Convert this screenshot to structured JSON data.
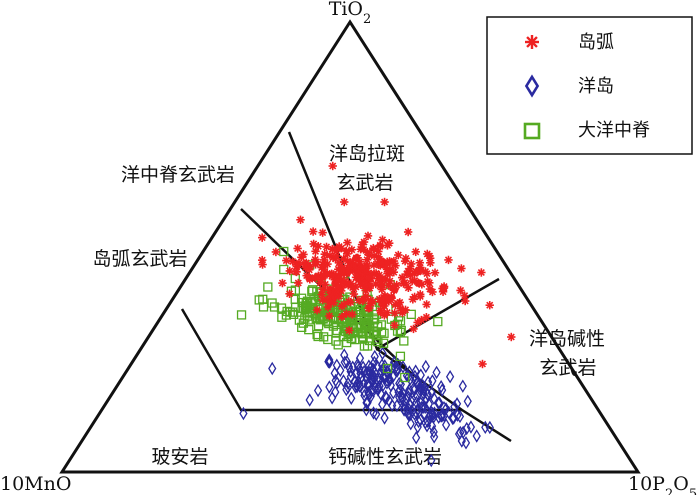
{
  "chart_data": {
    "type": "ternary-scatter",
    "apex_labels": {
      "top": "TiO2",
      "left": "10MnO",
      "right": "10P2O5"
    },
    "field_labels": [
      {
        "id": "oit",
        "lines": [
          "洋岛拉斑",
          "玄武岩"
        ]
      },
      {
        "id": "morb",
        "lines": [
          "洋中脊玄武岩"
        ]
      },
      {
        "id": "iat",
        "lines": [
          "岛弧玄武岩"
        ]
      },
      {
        "id": "oia",
        "lines": [
          "洋岛碱性",
          "玄武岩"
        ]
      },
      {
        "id": "bon",
        "lines": [
          "玻安岩"
        ]
      },
      {
        "id": "cab",
        "lines": [
          "钙碱性玄武岩"
        ]
      }
    ],
    "legend": [
      {
        "key": "island_arc",
        "label": "岛弧"
      },
      {
        "key": "ocean_island",
        "label": "洋岛"
      },
      {
        "key": "morb",
        "label": "大洋中脊"
      }
    ],
    "colors": {
      "island_arc": "#ee2222",
      "ocean_island": "#2a2aa0",
      "morb": "#55aa22"
    },
    "series": [
      {
        "key": "island_arc",
        "marker": "asterisk",
        "clusters": [
          {
            "center": [
              0.45,
              0.25,
              0.3
            ],
            "spread": [
              0.07,
              0.035
            ],
            "count": 260
          },
          {
            "center": [
              0.38,
              0.29,
              0.33
            ],
            "spread": [
              0.05,
              0.025
            ],
            "count": 80
          }
        ],
        "points": [
          [
            0.68,
            0.19,
            0.13
          ],
          [
            0.6,
            0.21,
            0.19
          ],
          [
            0.6,
            0.14,
            0.26
          ],
          [
            0.38,
            0.11,
            0.51
          ],
          [
            0.24,
            0.15,
            0.61
          ],
          [
            0.3,
            0.07,
            0.63
          ]
        ]
      },
      {
        "key": "ocean_island",
        "marker": "diamond",
        "clusters": [
          {
            "center": [
              0.2,
              0.34,
              0.46
            ],
            "spread": [
              0.05,
              0.03
            ],
            "count": 150
          },
          {
            "center": [
              0.13,
              0.3,
              0.57
            ],
            "spread": [
              0.04,
              0.03
            ],
            "count": 70
          }
        ],
        "points": [
          [
            0.13,
            0.62,
            0.25
          ],
          [
            0.23,
            0.52,
            0.25
          ],
          [
            0.16,
            0.49,
            0.35
          ],
          [
            0.1,
            0.24,
            0.66
          ],
          [
            0.08,
            0.24,
            0.68
          ],
          [
            0.12,
            0.26,
            0.62
          ],
          [
            0.22,
            0.36,
            0.42
          ],
          [
            0.12,
            0.38,
            0.5
          ],
          [
            0.26,
            0.38,
            0.36
          ],
          [
            0.17,
            0.39,
            0.44
          ]
        ]
      },
      {
        "key": "morb",
        "marker": "square",
        "clusters": [
          {
            "center": [
              0.36,
              0.35,
              0.29
            ],
            "spread": [
              0.05,
              0.025
            ],
            "count": 150
          },
          {
            "center": [
              0.31,
              0.32,
              0.37
            ],
            "spread": [
              0.04,
              0.02
            ],
            "count": 60
          }
        ],
        "points": [
          [
            0.49,
            0.37,
            0.14
          ],
          [
            0.43,
            0.38,
            0.19
          ],
          [
            0.45,
            0.39,
            0.16
          ],
          [
            0.46,
            0.34,
            0.2
          ],
          [
            0.44,
            0.29,
            0.27
          ],
          [
            0.39,
            0.36,
            0.25
          ],
          [
            0.23,
            0.32,
            0.45
          ],
          [
            0.21,
            0.3,
            0.49
          ]
        ]
      }
    ]
  }
}
